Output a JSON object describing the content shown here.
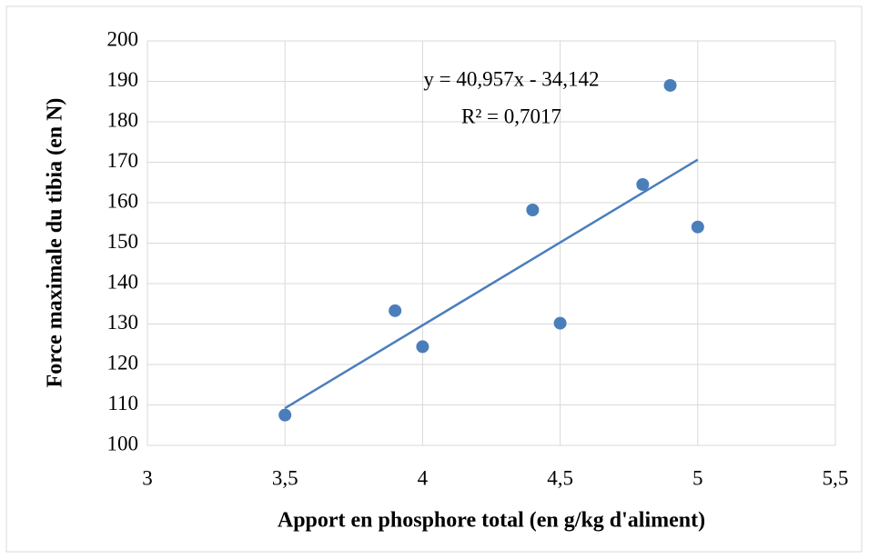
{
  "chart_data": {
    "type": "scatter",
    "x_label": "Apport en phosphore total (en g/kg d'aliment)",
    "y_label": "Force maximale du tibia (en N)",
    "x": [
      3.5,
      3.9,
      4.0,
      4.4,
      4.5,
      4.8,
      4.9,
      5.0
    ],
    "series": [
      {
        "color": "#4a7ebb",
        "values": [
          107.5,
          133.3,
          124.4,
          158.2,
          130.2,
          164.5,
          189,
          154
        ]
      }
    ],
    "xlim": [
      3,
      5.5
    ],
    "xticks": [
      3,
      {
        "value": 3.5,
        "label": "3,5"
      },
      4,
      {
        "value": 4.5,
        "label": "4,5"
      },
      5,
      {
        "value": 5.5,
        "label": "5,5"
      }
    ],
    "ylim": [
      100,
      200
    ],
    "yticks": [
      100,
      110,
      120,
      130,
      140,
      150,
      160,
      170,
      180,
      190,
      200
    ],
    "grid": true,
    "trendline": {
      "slope": 40.957,
      "intercept": -34.142,
      "color": "#4a7ebb",
      "equation": "y = 40,957x - 34,142",
      "r_squared": "R² = 0,7017"
    }
  }
}
